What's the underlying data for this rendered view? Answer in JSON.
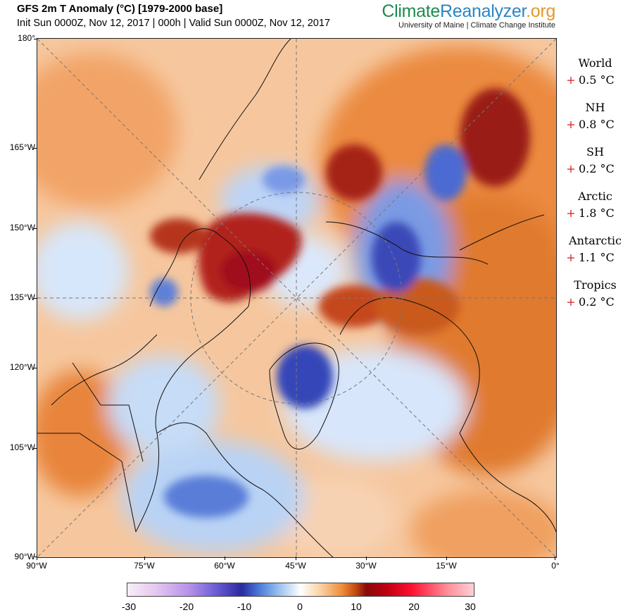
{
  "header": {
    "title": "GFS 2m T Anomaly (°C) [1979-2000 base]",
    "subtitle": "Init Sun 0000Z, Nov 12, 2017 | 000h | Valid Sun 0000Z, Nov 12, 2017"
  },
  "brand": {
    "part1": "Climate",
    "part2": "Reanalyzer",
    "part3": ".org",
    "subtitle": "University of Maine | Climate Change Institute"
  },
  "axes": {
    "lat_labels": [
      "180°",
      "165°W",
      "150°W",
      "135°W",
      "120°W",
      "105°W",
      "90°W"
    ],
    "lon_labels": [
      "90°W",
      "75°W",
      "60°W",
      "45°W",
      "30°W",
      "15°W",
      "0°"
    ]
  },
  "stats": [
    {
      "name": "World",
      "sign": "+",
      "value": "0.5 °C"
    },
    {
      "name": "NH",
      "sign": "+",
      "value": "0.8 °C"
    },
    {
      "name": "SH",
      "sign": "+",
      "value": "0.2 °C"
    },
    {
      "name": "Arctic",
      "sign": "+",
      "value": "1.8 °C"
    },
    {
      "name": "Antarctic",
      "sign": "+",
      "value": "1.1 °C"
    },
    {
      "name": "Tropics",
      "sign": "+",
      "value": "0.2 °C"
    }
  ],
  "colorbar": {
    "ticks": [
      "-30",
      "-20",
      "-10",
      "0",
      "10",
      "20",
      "30"
    ]
  }
}
